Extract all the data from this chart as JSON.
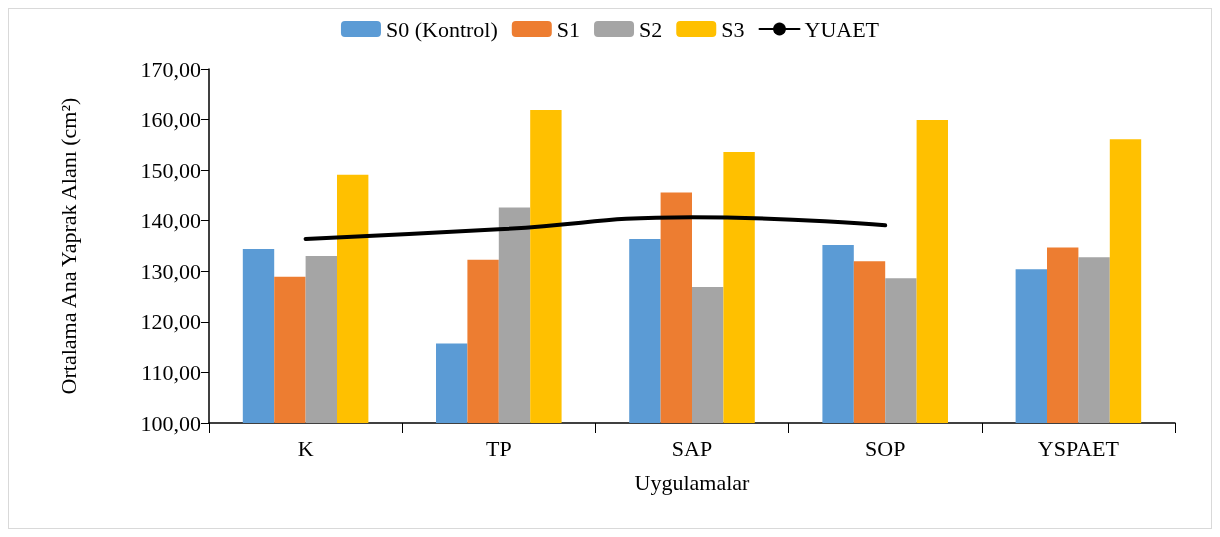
{
  "chart_data": {
    "type": "bar",
    "categories": [
      "K",
      "TP",
      "SAP",
      "SOP",
      "YSPAET"
    ],
    "xlabel": "Uygulamalar",
    "ylabel": "Ortalama Ana Yaprak Alanı (cm²)",
    "series": [
      {
        "name": "S0 (Kontrol)",
        "color": "#5b9bd5",
        "values": [
          134.4,
          115.7,
          136.4,
          135.2,
          130.4
        ]
      },
      {
        "name": "S1",
        "color": "#ed7d31",
        "values": [
          128.9,
          132.3,
          145.6,
          132.0,
          134.7
        ]
      },
      {
        "name": "S2",
        "color": "#a5a5a5",
        "values": [
          133.0,
          142.6,
          126.9,
          128.6,
          132.8
        ]
      },
      {
        "name": "S3",
        "color": "#ffc000",
        "values": [
          149.1,
          161.9,
          153.6,
          159.9,
          156.1
        ]
      },
      {
        "name": "YUAET",
        "type": "line",
        "color": "#000000",
        "values": [
          136.4,
          138.3,
          140.7,
          139.1,
          null
        ]
      }
    ],
    "ylim": [
      100,
      170
    ],
    "yticks": [
      {
        "value": 100,
        "label": "100,00"
      },
      {
        "value": 110,
        "label": "110,00"
      },
      {
        "value": 120,
        "label": "120,00"
      },
      {
        "value": 130,
        "label": "130,00"
      },
      {
        "value": 140,
        "label": "140,00"
      },
      {
        "value": 150,
        "label": "150,00"
      },
      {
        "value": 160,
        "label": "160,00"
      },
      {
        "value": 170,
        "label": "170,00"
      }
    ],
    "grid": false,
    "legend": "top",
    "marker": "none",
    "line_style": "solid"
  }
}
